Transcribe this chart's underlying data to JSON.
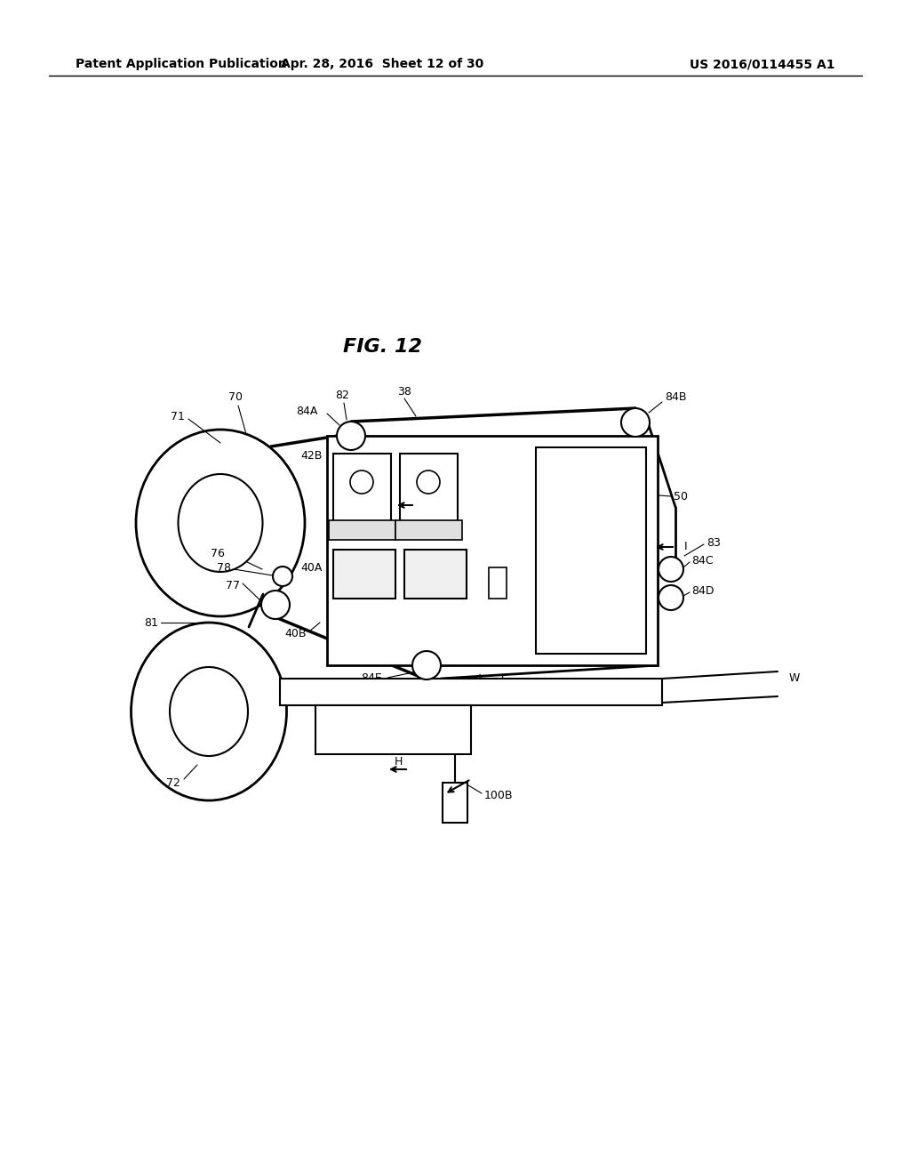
{
  "bg_color": "#ffffff",
  "header_left": "Patent Application Publication",
  "header_mid": "Apr. 28, 2016  Sheet 12 of 30",
  "header_right": "US 2016/0114455 A1",
  "fig_label": "FIG. 12"
}
